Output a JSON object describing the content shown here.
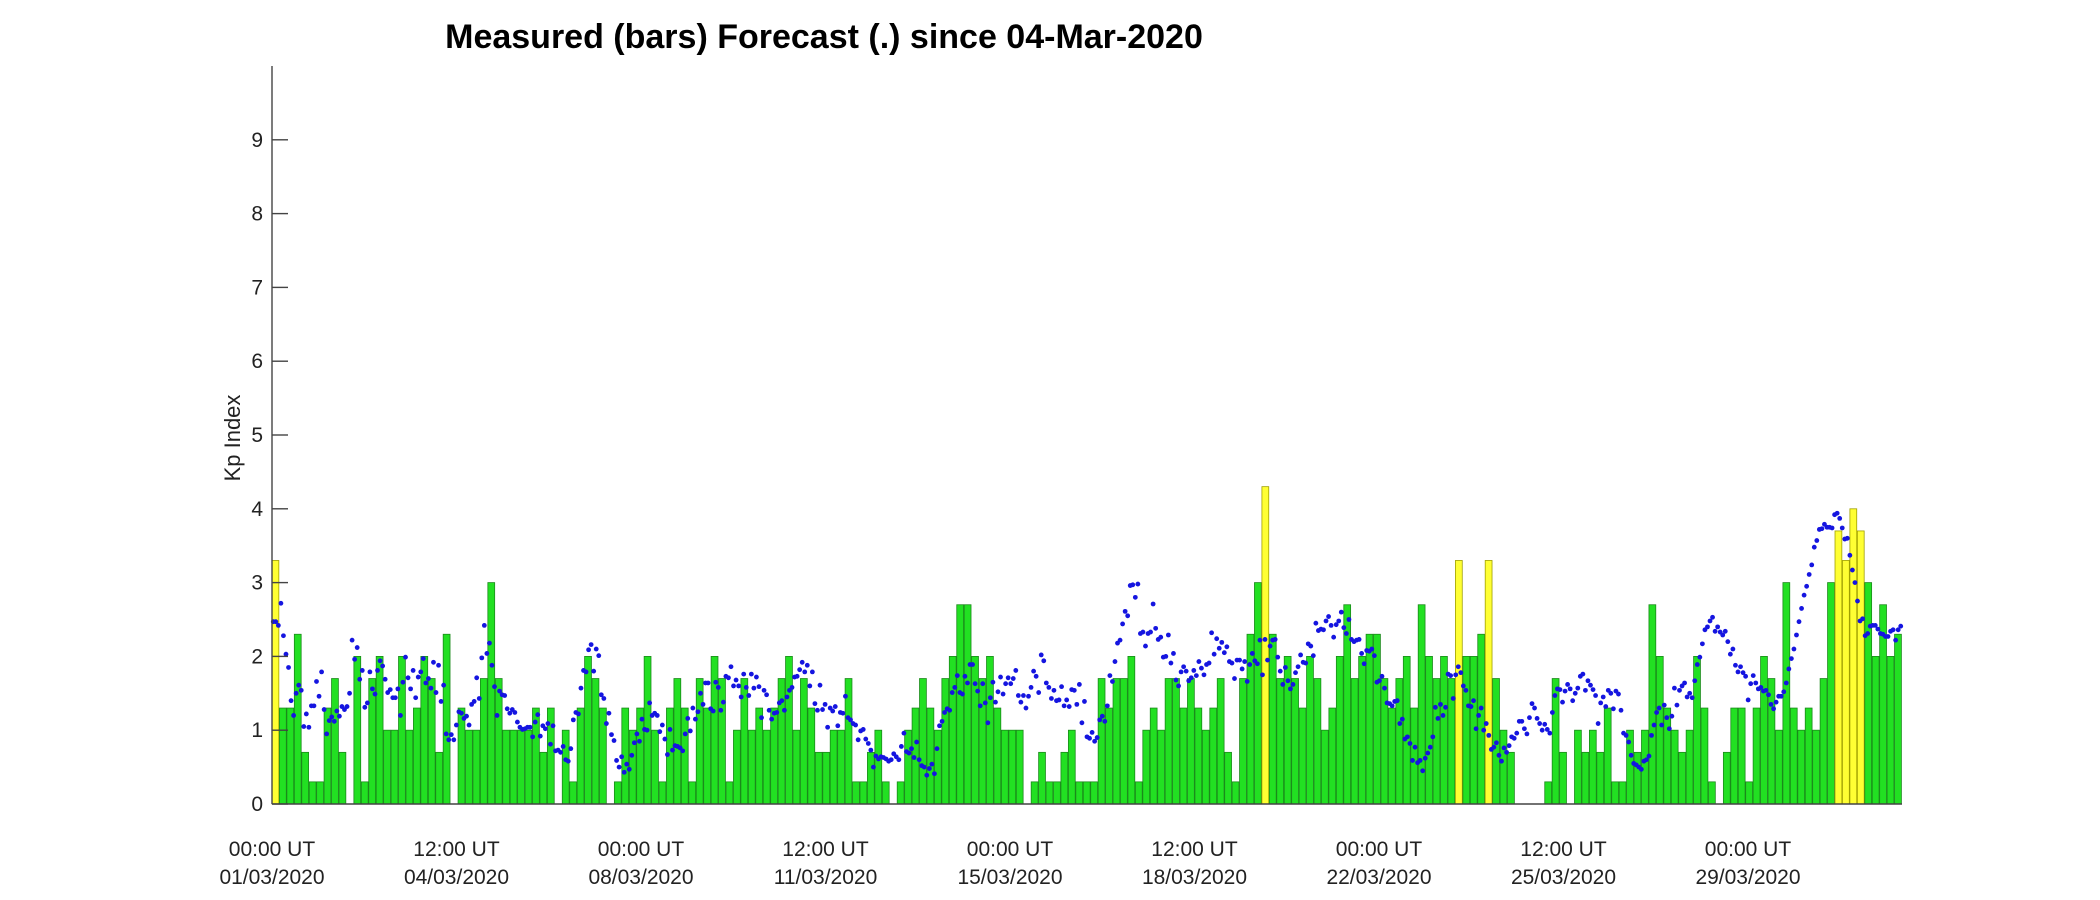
{
  "chart_data": {
    "type": "bar",
    "title": "Measured (bars) Forecast (.) since 04-Mar-2020",
    "xlabel": "",
    "ylabel": "Kp Index",
    "ylim": [
      0,
      10
    ],
    "y_ticks": [
      "0",
      "1",
      "2",
      "3",
      "4",
      "5",
      "6",
      "7",
      "8",
      "9"
    ],
    "x_tick_labels": [
      {
        "time": "00:00 UT",
        "date": "01/03/2020"
      },
      {
        "time": "12:00 UT",
        "date": "04/03/2020"
      },
      {
        "time": "00:00 UT",
        "date": "08/03/2020"
      },
      {
        "time": "12:00 UT",
        "date": "11/03/2020"
      },
      {
        "time": "00:00 UT",
        "date": "15/03/2020"
      },
      {
        "time": "12:00 UT",
        "date": "18/03/2020"
      },
      {
        "time": "00:00 UT",
        "date": "22/03/2020"
      },
      {
        "time": "12:00 UT",
        "date": "25/03/2020"
      },
      {
        "time": "00:00 UT",
        "date": "29/03/2020"
      }
    ],
    "colors": {
      "bar_quiet": "#22e022",
      "bar_active": "#ffff33",
      "bar_edge": "#1a8a1a",
      "bar_active_edge": "#a0a000",
      "forecast_dot": "#1515e0",
      "axis": "#444444"
    },
    "active_threshold": 3.3,
    "series": [
      {
        "name": "Measured (bars)",
        "x_start": "01/03/2020 00:00 UT",
        "x_step": "3 h",
        "values": [
          3.3,
          1.3,
          1.3,
          2.3,
          0.7,
          0.3,
          0.3,
          1.3,
          1.7,
          0.7,
          0.0,
          2.0,
          0.3,
          1.7,
          2.0,
          1.0,
          1.0,
          2.0,
          1.0,
          1.3,
          2.0,
          1.7,
          0.7,
          2.3,
          0.0,
          1.3,
          1.0,
          1.0,
          1.7,
          3.0,
          1.7,
          1.0,
          1.0,
          1.0,
          1.0,
          1.3,
          0.7,
          1.3,
          0.0,
          1.0,
          0.3,
          1.3,
          2.0,
          1.7,
          1.3,
          0.0,
          0.3,
          1.3,
          1.0,
          1.3,
          2.0,
          1.0,
          0.3,
          1.3,
          1.7,
          1.3,
          0.3,
          1.7,
          1.3,
          2.0,
          1.7,
          0.3,
          1.0,
          1.7,
          1.0,
          1.3,
          1.0,
          1.3,
          1.7,
          2.0,
          1.0,
          1.7,
          1.3,
          0.7,
          0.7,
          1.0,
          1.0,
          1.7,
          0.3,
          0.3,
          0.7,
          1.0,
          0.3,
          0.0,
          0.3,
          1.0,
          1.3,
          1.7,
          1.3,
          1.0,
          1.7,
          2.0,
          2.7,
          2.7,
          2.0,
          1.7,
          2.0,
          1.3,
          1.0,
          1.0,
          1.0,
          0.0,
          0.3,
          0.7,
          0.3,
          0.3,
          0.7,
          1.0,
          0.3,
          0.3,
          0.3,
          1.7,
          1.3,
          1.7,
          1.7,
          2.0,
          0.3,
          1.0,
          1.3,
          1.0,
          1.7,
          1.7,
          1.3,
          1.7,
          1.3,
          1.0,
          1.3,
          1.7,
          0.7,
          0.3,
          1.7,
          2.3,
          3.0,
          4.3,
          2.3,
          1.7,
          2.0,
          1.7,
          1.3,
          2.0,
          1.7,
          1.0,
          1.3,
          2.0,
          2.7,
          1.7,
          2.0,
          2.3,
          2.3,
          1.7,
          1.3,
          1.7,
          2.0,
          1.3,
          2.7,
          2.0,
          1.7,
          2.0,
          1.7,
          3.3,
          2.0,
          2.0,
          2.3,
          3.3,
          1.7,
          1.0,
          0.7,
          0.0,
          0.0,
          0.0,
          0.0,
          0.3,
          1.7,
          0.7,
          0.0,
          1.0,
          0.7,
          1.0,
          0.7,
          1.3,
          0.3,
          0.3,
          1.0,
          0.7,
          1.0,
          2.7,
          2.0,
          1.3,
          1.0,
          0.7,
          1.0,
          2.0,
          1.3,
          0.3,
          0.0,
          0.7,
          1.3,
          1.3,
          0.3,
          1.3,
          2.0,
          1.7,
          1.0,
          3.0,
          1.3,
          1.0,
          1.3,
          1.0,
          1.7,
          3.0,
          3.7,
          3.3,
          4.0,
          3.7,
          3.0,
          2.0,
          2.7,
          2.0,
          2.3
        ]
      },
      {
        "name": "Forecast (.)",
        "x_start": "01/03/2020 00:00 UT",
        "x_step": "1 h",
        "values": [
          2.47,
          2.47,
          2.42,
          2.72,
          2.28,
          2.03,
          1.85,
          1.4,
          1.2,
          1.5,
          1.61,
          1.54,
          1.05,
          1.22,
          1.04,
          1.33,
          1.33,
          1.66,
          1.46,
          1.79,
          1.28,
          0.95,
          1.13,
          1.18,
          1.12,
          1.26,
          1.19,
          1.32,
          1.28,
          1.32,
          1.5,
          2.22,
          1.96,
          2.12,
          1.69,
          1.81,
          1.31,
          1.37,
          1.79,
          1.56,
          1.49,
          1.81,
          1.94,
          1.87,
          1.69,
          1.51,
          1.55,
          1.44,
          1.44,
          1.56,
          1.2,
          1.65,
          1.99,
          1.71,
          1.56,
          1.81,
          1.44,
          1.72,
          1.79,
          1.97,
          1.64,
          1.7,
          1.57,
          1.92,
          1.51,
          1.88,
          1.39,
          1.61,
          0.95,
          0.87,
          0.94,
          0.87,
          1.07,
          1.25,
          1.23,
          1.16,
          1.19,
          1.07,
          1.35,
          1.39,
          1.71,
          1.43,
          1.98,
          2.42,
          2.04,
          2.18,
          1.88,
          1.59,
          1.2,
          1.53,
          1.48,
          1.47,
          1.29,
          1.23,
          1.28,
          1.24,
          1.11,
          1.04,
          1.01,
          1.02,
          1.04,
          1.04,
          0.91,
          1.11,
          1.21,
          0.92,
          1.06,
          1.02,
          1.09,
          0.81,
          1.06,
          0.72,
          0.73,
          0.7,
          0.78,
          0.6,
          0.58,
          0.75,
          1.14,
          1.24,
          1.22,
          1.57,
          1.81,
          1.79,
          2.09,
          2.16,
          1.8,
          2.1,
          2.01,
          1.48,
          1.43,
          1.09,
          1.23,
          0.94,
          0.86,
          0.59,
          0.5,
          0.64,
          0.43,
          0.54,
          0.47,
          0.66,
          0.83,
          0.95,
          0.85,
          1.15,
          1.01,
          1.0,
          1.37,
          1.2,
          1.23,
          1.2,
          0.98,
          1.07,
          0.88,
          0.67,
          1.01,
          0.73,
          0.79,
          0.78,
          0.76,
          0.72,
          0.95,
          1.16,
          0.99,
          1.3,
          1.15,
          1.25,
          1.5,
          1.35,
          1.64,
          1.64,
          1.29,
          1.26,
          1.65,
          1.58,
          1.27,
          1.38,
          1.73,
          1.71,
          1.86,
          1.6,
          1.68,
          1.6,
          1.45,
          1.76,
          1.58,
          1.47,
          1.76,
          1.57,
          1.72,
          1.59,
          1.17,
          1.54,
          1.48,
          1.27,
          1.15,
          1.23,
          1.24,
          1.37,
          1.4,
          1.27,
          1.45,
          1.54,
          1.58,
          1.72,
          1.73,
          1.82,
          1.92,
          1.79,
          1.88,
          1.6,
          1.79,
          1.36,
          1.27,
          1.61,
          1.28,
          1.35,
          1.04,
          1.3,
          1.26,
          1.32,
          1.06,
          1.24,
          1.23,
          1.46,
          1.17,
          1.14,
          1.09,
          1.07,
          0.87,
          0.99,
          1.01,
          0.88,
          0.82,
          0.73,
          0.5,
          0.65,
          0.61,
          0.64,
          0.63,
          0.61,
          0.58,
          0.6,
          0.68,
          0.64,
          0.6,
          0.78,
          0.96,
          0.71,
          0.69,
          0.75,
          0.63,
          0.84,
          0.6,
          0.52,
          0.5,
          0.39,
          0.48,
          0.54,
          0.41,
          0.75,
          1.06,
          1.12,
          1.24,
          1.29,
          1.27,
          1.51,
          1.58,
          1.74,
          1.51,
          1.49,
          1.73,
          1.64,
          1.89,
          1.89,
          1.63,
          1.53,
          1.33,
          1.63,
          1.37,
          1.1,
          1.44,
          1.65,
          1.38,
          1.52,
          1.72,
          1.49,
          1.63,
          1.71,
          1.63,
          1.7,
          1.81,
          1.47,
          1.38,
          1.47,
          1.3,
          1.46,
          1.58,
          1.8,
          1.73,
          1.51,
          2.02,
          1.94,
          1.64,
          1.58,
          1.43,
          1.54,
          1.4,
          1.41,
          1.59,
          1.33,
          1.41,
          1.32,
          1.55,
          1.54,
          1.35,
          1.62,
          1.1,
          1.39,
          0.91,
          0.89,
          0.97,
          0.85,
          0.9,
          1.14,
          1.19,
          1.12,
          1.33,
          1.74,
          1.66,
          1.93,
          2.18,
          2.22,
          2.44,
          2.61,
          2.55,
          2.96,
          2.97,
          2.8,
          2.98,
          2.31,
          2.33,
          2.14,
          2.31,
          2.33,
          2.71,
          2.38,
          2.23,
          2.26,
          1.99,
          2.0,
          2.29,
          1.91,
          2.04,
          1.68,
          1.6,
          1.79,
          1.86,
          1.8,
          1.67,
          1.71,
          1.81,
          1.74,
          1.93,
          1.84,
          1.75,
          1.89,
          1.91,
          2.32,
          2.03,
          2.24,
          2.11,
          2.19,
          2.05,
          2.13,
          1.93,
          1.91,
          1.7,
          1.95,
          1.95,
          1.83,
          1.93,
          1.66,
          1.89,
          2.04,
          1.94,
          1.9,
          2.22,
          1.75,
          2.23,
          1.95,
          2.14,
          2.22,
          2.23,
          1.99,
          1.8,
          1.62,
          1.85,
          1.67,
          1.56,
          1.62,
          1.78,
          1.86,
          2.02,
          1.92,
          1.91,
          2.17,
          2.14,
          2.01,
          2.45,
          2.35,
          2.37,
          2.36,
          2.48,
          2.54,
          2.42,
          2.26,
          2.43,
          2.48,
          2.6,
          2.39,
          2.31,
          2.5,
          2.23,
          2.2,
          2.22,
          2.23,
          2.04,
          1.9,
          2.08,
          2.07,
          2.1,
          2.01,
          1.65,
          1.67,
          1.73,
          1.57,
          1.37,
          1.36,
          1.33,
          1.39,
          1.4,
          1.09,
          1.15,
          0.88,
          0.91,
          0.82,
          0.59,
          0.77,
          0.56,
          0.59,
          0.45,
          0.62,
          0.69,
          0.77,
          0.91,
          1.31,
          1.16,
          1.35,
          1.2,
          1.31,
          1.76,
          1.74,
          1.43,
          1.75,
          1.86,
          1.78,
          1.6,
          1.54,
          1.33,
          1.32,
          1.4,
          1.02,
          1.2,
          1.3,
          1.0,
          1.09,
          0.93,
          0.74,
          0.77,
          0.83,
          0.66,
          0.58,
          0.76,
          0.7,
          0.79,
          0.91,
          0.89,
          0.96,
          1.12,
          1.12,
          1.02,
          0.95,
          1.17,
          1.36,
          1.3,
          1.16,
          1.09,
          1.0,
          1.08,
          1.01,
          0.96,
          1.24,
          1.47,
          1.56,
          1.55,
          1.38,
          1.53,
          1.62,
          1.56,
          1.4,
          1.5,
          1.57,
          1.73,
          1.76,
          1.54,
          1.67,
          1.61,
          1.55,
          1.47,
          1.09,
          1.37,
          1.45,
          1.32,
          1.54,
          1.5,
          1.29,
          1.53,
          1.49,
          1.27,
          0.96,
          0.93,
          0.84,
          0.66,
          0.55,
          0.53,
          0.5,
          0.47,
          0.58,
          0.6,
          0.65,
          0.93,
          1.07,
          1.24,
          1.3,
          1.07,
          1.34,
          1.17,
          1.02,
          1.19,
          1.57,
          1.34,
          1.54,
          1.6,
          1.64,
          1.45,
          1.5,
          1.44,
          1.67,
          1.89,
          1.99,
          2.17,
          2.36,
          2.4,
          2.48,
          2.53,
          2.34,
          2.4,
          2.33,
          2.29,
          2.34,
          2.2,
          2.03,
          2.1,
          1.88,
          1.79,
          1.86,
          1.78,
          1.73,
          1.41,
          1.63,
          1.74,
          1.64,
          1.56,
          1.58,
          1.53,
          1.54,
          1.48,
          1.35,
          1.29,
          1.38,
          1.46,
          1.46,
          1.52,
          1.64,
          1.83,
          1.97,
          2.1,
          2.29,
          2.47,
          2.65,
          2.83,
          2.95,
          3.11,
          3.24,
          3.48,
          3.57,
          3.72,
          3.73,
          3.79,
          3.75,
          3.75,
          3.74,
          3.92,
          3.94,
          3.87,
          3.74,
          3.59,
          3.6,
          3.37,
          3.17,
          3.0,
          2.75,
          2.48,
          2.51,
          2.28,
          2.31,
          2.41,
          2.42,
          2.42,
          2.37,
          2.31,
          2.3,
          2.27,
          2.27,
          2.34,
          2.36,
          2.22,
          2.36,
          2.41
        ]
      }
    ]
  }
}
